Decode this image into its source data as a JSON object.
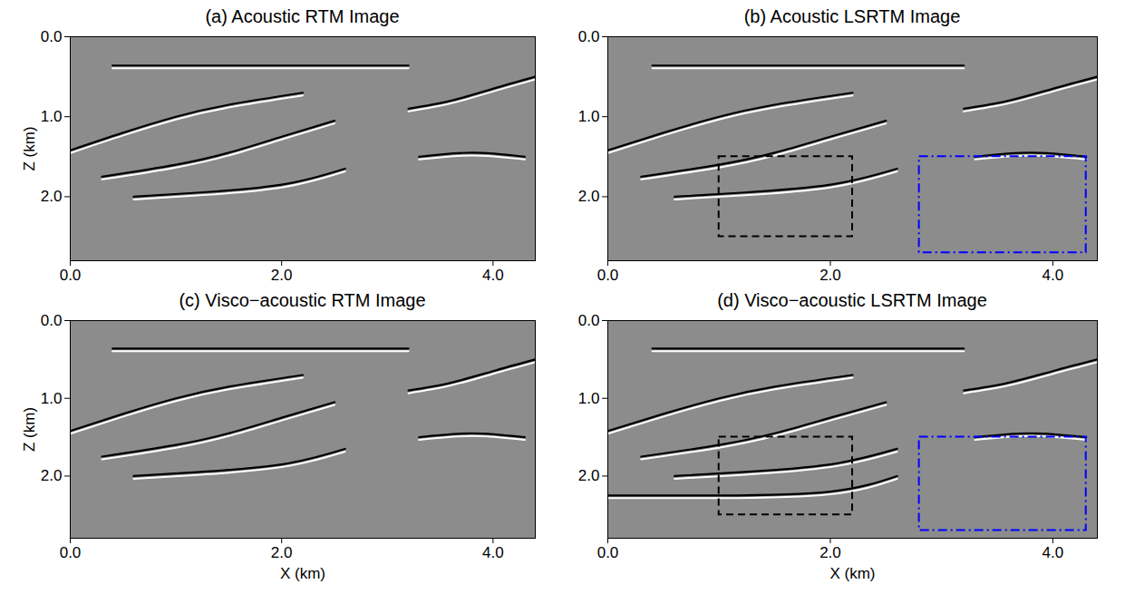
{
  "chart_data": [
    {
      "type": "image",
      "title": "(a) Acoustic RTM Image",
      "ylabel": "Z (km)",
      "xlim": [
        0,
        4.4
      ],
      "ylim": [
        0,
        2.8
      ],
      "xticks": [
        0,
        2,
        4
      ],
      "yticks": [
        0,
        1,
        2
      ],
      "reflectors": [
        {
          "x": [
            0.4,
            1.5,
            3.2
          ],
          "z": [
            0.36,
            0.36,
            0.36
          ]
        },
        {
          "x": [
            0,
            0.5,
            1,
            1.5,
            2.2
          ],
          "z": [
            1.42,
            1.2,
            1.0,
            0.85,
            0.7
          ]
        },
        {
          "x": [
            0.3,
            1,
            1.5,
            2,
            2.5
          ],
          "z": [
            1.75,
            1.6,
            1.45,
            1.25,
            1.05
          ]
        },
        {
          "x": [
            0.6,
            1.2,
            2,
            2.6
          ],
          "z": [
            2.0,
            1.95,
            1.85,
            1.65
          ]
        },
        {
          "x": [
            3.2,
            3.6,
            4,
            4.4
          ],
          "z": [
            0.9,
            0.8,
            0.65,
            0.5
          ]
        },
        {
          "x": [
            3.3,
            3.8,
            4.3
          ],
          "z": [
            1.5,
            1.45,
            1.5
          ]
        }
      ]
    },
    {
      "type": "image",
      "title": "(b) Acoustic LSRTM Image",
      "xlim": [
        0,
        4.4
      ],
      "ylim": [
        0,
        2.8
      ],
      "xticks": [
        0,
        2,
        4
      ],
      "yticks": [
        0,
        1,
        2
      ],
      "reflectors": [
        {
          "x": [
            0.4,
            1.5,
            3.2
          ],
          "z": [
            0.36,
            0.36,
            0.36
          ]
        },
        {
          "x": [
            0,
            0.5,
            1,
            1.5,
            2.2
          ],
          "z": [
            1.42,
            1.2,
            1.0,
            0.85,
            0.7
          ]
        },
        {
          "x": [
            0.3,
            1,
            1.5,
            2,
            2.5
          ],
          "z": [
            1.75,
            1.6,
            1.45,
            1.25,
            1.05
          ]
        },
        {
          "x": [
            0.6,
            1.2,
            2,
            2.6
          ],
          "z": [
            2.0,
            1.95,
            1.85,
            1.65
          ]
        },
        {
          "x": [
            3.2,
            3.6,
            4,
            4.4
          ],
          "z": [
            0.9,
            0.8,
            0.65,
            0.5
          ]
        },
        {
          "x": [
            3.3,
            3.8,
            4.3
          ],
          "z": [
            1.5,
            1.45,
            1.5
          ]
        }
      ],
      "boxes": [
        {
          "x1": 1.0,
          "x2": 2.2,
          "z1": 1.5,
          "z2": 2.5,
          "color": "#000000",
          "line_style": "dashed"
        },
        {
          "x1": 2.8,
          "x2": 4.3,
          "z1": 1.5,
          "z2": 2.7,
          "color": "#0000ff",
          "line_style": "dashdot"
        }
      ]
    },
    {
      "type": "image",
      "title": "(c) Visco−acoustic RTM Image",
      "xlabel": "X (km)",
      "ylabel": "Z (km)",
      "xlim": [
        0,
        4.4
      ],
      "ylim": [
        0,
        2.8
      ],
      "xticks": [
        0,
        2,
        4
      ],
      "yticks": [
        0,
        1,
        2
      ],
      "reflectors": [
        {
          "x": [
            0.4,
            1.5,
            3.2
          ],
          "z": [
            0.36,
            0.36,
            0.36
          ]
        },
        {
          "x": [
            0,
            0.5,
            1,
            1.5,
            2.2
          ],
          "z": [
            1.42,
            1.2,
            1.0,
            0.85,
            0.7
          ]
        },
        {
          "x": [
            0.3,
            1,
            1.5,
            2,
            2.5
          ],
          "z": [
            1.75,
            1.6,
            1.45,
            1.25,
            1.05
          ]
        },
        {
          "x": [
            0.6,
            1.2,
            2,
            2.6
          ],
          "z": [
            2.0,
            1.95,
            1.85,
            1.65
          ]
        },
        {
          "x": [
            3.2,
            3.6,
            4,
            4.4
          ],
          "z": [
            0.9,
            0.8,
            0.65,
            0.5
          ]
        },
        {
          "x": [
            3.3,
            3.8,
            4.3
          ],
          "z": [
            1.5,
            1.45,
            1.5
          ]
        }
      ]
    },
    {
      "type": "image",
      "title": "(d) Visco−acoustic LSRTM Image",
      "xlabel": "X (km)",
      "xlim": [
        0,
        4.4
      ],
      "ylim": [
        0,
        2.8
      ],
      "xticks": [
        0,
        2,
        4
      ],
      "yticks": [
        0,
        1,
        2
      ],
      "reflectors": [
        {
          "x": [
            0.4,
            1.5,
            3.2
          ],
          "z": [
            0.36,
            0.36,
            0.36
          ]
        },
        {
          "x": [
            0,
            0.5,
            1,
            1.5,
            2.2
          ],
          "z": [
            1.42,
            1.2,
            1.0,
            0.85,
            0.7
          ]
        },
        {
          "x": [
            0.3,
            1,
            1.5,
            2,
            2.5
          ],
          "z": [
            1.75,
            1.6,
            1.45,
            1.25,
            1.05
          ]
        },
        {
          "x": [
            0.6,
            1.2,
            2,
            2.6
          ],
          "z": [
            2.0,
            1.95,
            1.85,
            1.65
          ]
        },
        {
          "x": [
            3.2,
            3.6,
            4,
            4.4
          ],
          "z": [
            0.9,
            0.8,
            0.65,
            0.5
          ]
        },
        {
          "x": [
            3.3,
            3.8,
            4.3
          ],
          "z": [
            1.5,
            1.45,
            1.5
          ]
        },
        {
          "x": [
            0,
            1,
            2,
            2.6
          ],
          "z": [
            2.25,
            2.25,
            2.2,
            2.0
          ]
        }
      ],
      "boxes": [
        {
          "x1": 1.0,
          "x2": 2.2,
          "z1": 1.5,
          "z2": 2.5,
          "color": "#000000",
          "line_style": "dashed"
        },
        {
          "x1": 2.8,
          "x2": 4.3,
          "z1": 1.5,
          "z2": 2.7,
          "color": "#0000ff",
          "line_style": "dashdot"
        }
      ]
    }
  ]
}
